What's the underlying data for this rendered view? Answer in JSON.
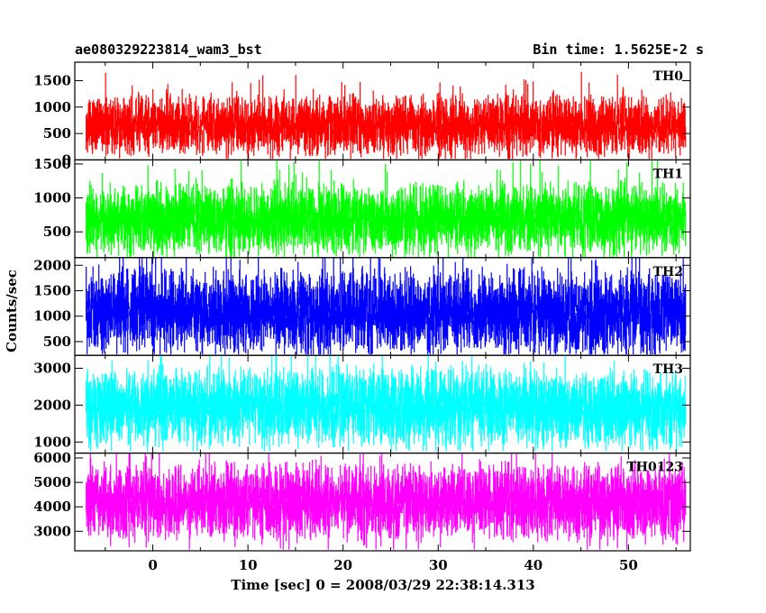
{
  "chart_data": {
    "type": "line",
    "title_left": "ae080329223814_wam3_bst",
    "title_right": "Bin time: 1.5625E-2 s",
    "xlabel": "Time [sec] 0 = 2008/03/29 22:38:14.313",
    "ylabel": "Counts/sec",
    "xlim": [
      -8.2,
      56.5
    ],
    "x_ticks": [
      0,
      10,
      20,
      30,
      40,
      50
    ],
    "panels": [
      {
        "name": "TH0",
        "color": "#ff0000",
        "ylim": [
          0,
          1850
        ],
        "y_ticks": [
          0,
          500,
          1000,
          1500
        ],
        "baseline": 650,
        "spread": 560,
        "min": 20,
        "max": 1850
      },
      {
        "name": "TH1",
        "color": "#00ff00",
        "ylim": [
          120,
          1560
        ],
        "y_ticks": [
          500,
          1000,
          1500
        ],
        "baseline": 690,
        "spread": 520,
        "min": 130,
        "max": 1560
      },
      {
        "name": "TH2",
        "color": "#0000ff",
        "ylim": [
          230,
          2150
        ],
        "y_ticks": [
          500,
          1000,
          1500,
          2000
        ],
        "baseline": 1080,
        "spread": 820,
        "min": 250,
        "max": 2150
      },
      {
        "name": "TH3",
        "color": "#00ffff",
        "ylim": [
          700,
          3350
        ],
        "y_ticks": [
          1000,
          2000,
          3000
        ],
        "baseline": 1950,
        "spread": 1050,
        "min": 750,
        "max": 3350
      },
      {
        "name": "TH0123",
        "color": "#ff00ff",
        "ylim": [
          2200,
          6200
        ],
        "y_ticks": [
          3000,
          4000,
          5000,
          6000
        ],
        "baseline": 4200,
        "spread": 1550,
        "min": 2250,
        "max": 6200
      }
    ]
  }
}
